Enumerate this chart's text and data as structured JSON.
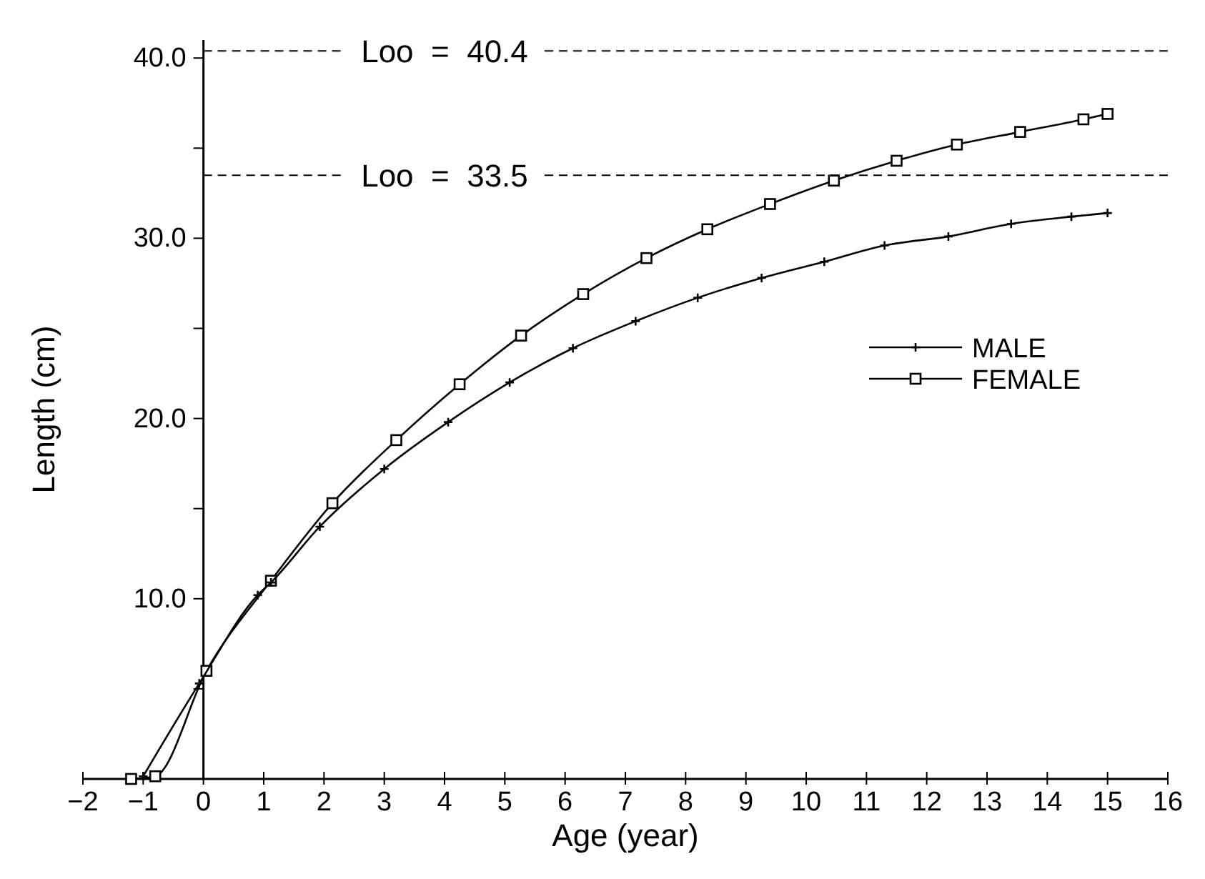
{
  "chart_data": {
    "type": "line",
    "xlabel": "Age (year)",
    "ylabel": "Length (cm)",
    "xlim": [
      -2,
      16
    ],
    "ylim": [
      0,
      41
    ],
    "xticks": [
      -2,
      -1,
      0,
      1,
      2,
      3,
      4,
      5,
      6,
      7,
      8,
      9,
      10,
      11,
      12,
      13,
      14,
      15,
      16
    ],
    "yticks": [
      {
        "value": 0,
        "label": null
      },
      {
        "value": 5,
        "label": null
      },
      {
        "value": 10,
        "label": "10.0"
      },
      {
        "value": 15,
        "label": null
      },
      {
        "value": 20,
        "label": "20.0"
      },
      {
        "value": 25,
        "label": null
      },
      {
        "value": 30,
        "label": "30.0"
      },
      {
        "value": 35,
        "label": null
      },
      {
        "value": 40,
        "label": "40.0"
      }
    ],
    "grid": false,
    "legend": "right",
    "ref_lines": [
      {
        "axis": "y",
        "value": 40.4,
        "label": "Loo  =  40.4",
        "line_style": "dashed"
      },
      {
        "axis": "y",
        "value": 33.5,
        "label": "Loo  =  33.5",
        "line_style": "dashed"
      }
    ],
    "series": [
      {
        "name": "MALE",
        "color": "#000000",
        "marker": "cross",
        "x": [
          -1.0,
          -0.07,
          0.9,
          1.12,
          1.93,
          3.0,
          4.06,
          5.08,
          6.13,
          7.17,
          8.2,
          9.26,
          10.3,
          11.3,
          12.36,
          13.4,
          14.4,
          15.0
        ],
        "values": [
          0.15,
          5.3,
          10.2,
          10.9,
          14.0,
          17.2,
          19.8,
          22.0,
          23.9,
          25.4,
          26.7,
          27.8,
          28.7,
          29.6,
          30.1,
          30.8,
          31.2,
          31.4
        ]
      },
      {
        "name": "FEMALE",
        "color": "#000000",
        "marker": "square",
        "x": [
          -1.2,
          -0.8,
          0.05,
          1.12,
          2.14,
          3.2,
          4.25,
          5.27,
          6.3,
          7.35,
          8.36,
          9.4,
          10.46,
          11.5,
          12.5,
          13.55,
          14.6,
          15.0
        ],
        "values": [
          0,
          0.15,
          6.0,
          11.0,
          15.3,
          18.8,
          21.9,
          24.6,
          26.9,
          28.9,
          30.5,
          31.9,
          33.2,
          34.3,
          35.2,
          35.9,
          36.6,
          36.9
        ]
      }
    ]
  }
}
